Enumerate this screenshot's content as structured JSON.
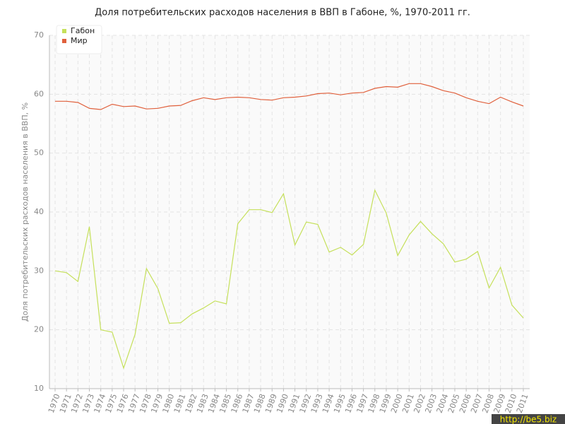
{
  "chart_data": {
    "type": "line",
    "title": "Доля потребительских расходов населения в ВВП в Габоне, %, 1970-2011 гг.",
    "y_label": "Доля потребительских расходов населения в ВВП, %",
    "categories": [
      "1970",
      "1971",
      "1972",
      "1973",
      "1974",
      "1975",
      "1976",
      "1977",
      "1978",
      "1979",
      "1980",
      "1981",
      "1982",
      "1983",
      "1984",
      "1985",
      "1986",
      "1987",
      "1988",
      "1989",
      "1990",
      "1991",
      "1992",
      "1993",
      "1994",
      "1995",
      "1996",
      "1997",
      "1998",
      "1999",
      "2000",
      "2001",
      "2002",
      "2003",
      "2004",
      "2005",
      "2006",
      "2007",
      "2008",
      "2009",
      "2010",
      "2011"
    ],
    "series": [
      {
        "name": "Габон",
        "color": "#c5e05a",
        "values": [
          30.0,
          29.7,
          28.2,
          37.5,
          20.0,
          19.6,
          13.5,
          19.2,
          30.4,
          27.0,
          21.1,
          21.2,
          22.7,
          23.7,
          24.9,
          24.4,
          38.0,
          40.4,
          40.4,
          39.9,
          43.1,
          34.4,
          38.3,
          37.9,
          33.2,
          34.0,
          32.7,
          34.5,
          43.7,
          39.8,
          32.6,
          36.1,
          38.4,
          36.3,
          34.6,
          31.5,
          32.0,
          33.3,
          27.1,
          30.6,
          24.2,
          22.0
        ]
      },
      {
        "name": "Мир",
        "color": "#e0603c",
        "values": [
          58.8,
          58.8,
          58.6,
          57.6,
          57.4,
          58.3,
          57.9,
          58.0,
          57.5,
          57.6,
          58.0,
          58.1,
          58.9,
          59.4,
          59.1,
          59.4,
          59.5,
          59.4,
          59.1,
          59.0,
          59.4,
          59.5,
          59.7,
          60.1,
          60.2,
          59.9,
          60.2,
          60.3,
          61.0,
          61.3,
          61.2,
          61.8,
          61.8,
          61.3,
          60.6,
          60.2,
          59.4,
          58.8,
          58.4,
          59.5,
          58.7,
          58.0
        ]
      }
    ],
    "ylim": [
      10,
      70
    ],
    "yticks": [
      10,
      20,
      30,
      40,
      50,
      60,
      70
    ],
    "grid": true,
    "legend": "top-left",
    "watermark": "http://be5.biz"
  }
}
